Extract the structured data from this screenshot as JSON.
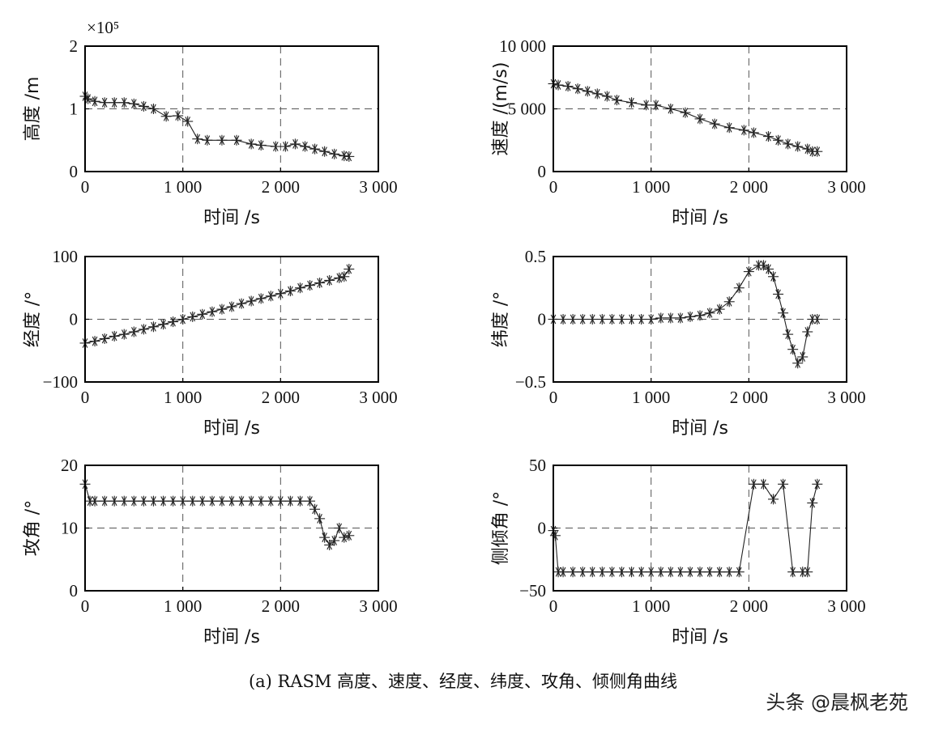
{
  "caption": "(a) RASM 高度、速度、经度、纬度、攻角、倾侧角曲线",
  "watermark": "头条 @晨枫老苑",
  "chart_data": [
    {
      "type": "line",
      "title": "",
      "xlabel": "时间 /s",
      "ylabel": "高度 /m",
      "xlim": [
        0,
        3000
      ],
      "ylim": [
        0,
        2
      ],
      "scale_note": "×10⁵",
      "xticks": [
        0,
        1000,
        2000,
        3000
      ],
      "xtick_labels": [
        "0",
        "1 000",
        "2 000",
        "3 000"
      ],
      "yticks": [
        0,
        1,
        2
      ],
      "ytick_labels": [
        "0",
        "1",
        "2"
      ],
      "grid": "dashed",
      "series": [
        {
          "x": [
            0,
            30,
            100,
            200,
            300,
            400,
            500,
            600,
            700,
            830,
            950,
            1050,
            1150,
            1250,
            1400,
            1550,
            1700,
            1800,
            1950,
            2050,
            2150,
            2250,
            2350,
            2450,
            2550,
            2650,
            2700
          ],
          "y": [
            1.2,
            1.16,
            1.12,
            1.1,
            1.1,
            1.1,
            1.08,
            1.04,
            1.0,
            0.88,
            0.89,
            0.8,
            0.52,
            0.5,
            0.5,
            0.5,
            0.44,
            0.42,
            0.4,
            0.4,
            0.44,
            0.4,
            0.36,
            0.32,
            0.28,
            0.25,
            0.24
          ]
        }
      ]
    },
    {
      "type": "line",
      "title": "",
      "xlabel": "时间 /s",
      "ylabel": "速度 /(m/s)",
      "xlim": [
        0,
        3000
      ],
      "ylim": [
        0,
        10000
      ],
      "xticks": [
        0,
        1000,
        2000,
        3000
      ],
      "xtick_labels": [
        "0",
        "1 000",
        "2 000",
        "3 000"
      ],
      "yticks": [
        0,
        5000,
        10000
      ],
      "ytick_labels": [
        "0",
        "5 000",
        "10 000"
      ],
      "grid": "dashed",
      "series": [
        {
          "x": [
            0,
            50,
            150,
            250,
            350,
            450,
            550,
            650,
            800,
            950,
            1050,
            1200,
            1350,
            1500,
            1650,
            1800,
            1950,
            2050,
            2200,
            2300,
            2400,
            2500,
            2600,
            2650,
            2700
          ],
          "y": [
            7000,
            6900,
            6800,
            6600,
            6400,
            6200,
            6000,
            5700,
            5500,
            5300,
            5300,
            5000,
            4700,
            4200,
            3800,
            3500,
            3300,
            3100,
            2800,
            2500,
            2200,
            2000,
            1800,
            1600,
            1600
          ]
        }
      ]
    },
    {
      "type": "line",
      "title": "",
      "xlabel": "时间 /s",
      "ylabel": "经度 /°",
      "xlim": [
        0,
        3000
      ],
      "ylim": [
        -100,
        100
      ],
      "xticks": [
        0,
        1000,
        2000,
        3000
      ],
      "xtick_labels": [
        "0",
        "1 000",
        "2 000",
        "3 000"
      ],
      "yticks": [
        -100,
        0,
        100
      ],
      "ytick_labels": [
        "−100",
        "0",
        "100"
      ],
      "grid": "dashed",
      "series": [
        {
          "x": [
            0,
            100,
            200,
            300,
            400,
            500,
            600,
            700,
            800,
            900,
            1000,
            1100,
            1200,
            1300,
            1400,
            1500,
            1600,
            1700,
            1800,
            1900,
            2000,
            2100,
            2200,
            2300,
            2400,
            2500,
            2600,
            2650,
            2700
          ],
          "y": [
            -38,
            -35,
            -31,
            -27,
            -24,
            -20,
            -16,
            -12,
            -8,
            -4,
            0,
            4,
            8,
            12,
            16,
            20,
            25,
            29,
            33,
            37,
            41,
            45,
            50,
            54,
            58,
            62,
            66,
            68,
            80
          ]
        }
      ]
    },
    {
      "type": "line",
      "title": "",
      "xlabel": "时间 /s",
      "ylabel": "纬度 /°",
      "xlim": [
        0,
        3000
      ],
      "ylim": [
        -0.5,
        0.5
      ],
      "xticks": [
        0,
        1000,
        2000,
        3000
      ],
      "xtick_labels": [
        "0",
        "1 000",
        "2 000",
        "3 000"
      ],
      "yticks": [
        -0.5,
        0,
        0.5
      ],
      "ytick_labels": [
        "−0.5",
        "0",
        "0.5"
      ],
      "grid": "dashed",
      "series": [
        {
          "x": [
            0,
            100,
            200,
            300,
            400,
            500,
            600,
            700,
            800,
            900,
            1000,
            1100,
            1200,
            1300,
            1400,
            1500,
            1600,
            1700,
            1800,
            1900,
            2000,
            2100,
            2150,
            2200,
            2250,
            2300,
            2350,
            2400,
            2450,
            2500,
            2550,
            2600,
            2650,
            2700
          ],
          "y": [
            0,
            0,
            0,
            0,
            0,
            0,
            0,
            0,
            0,
            0,
            0,
            0.01,
            0.01,
            0.01,
            0.02,
            0.03,
            0.05,
            0.08,
            0.14,
            0.25,
            0.38,
            0.43,
            0.43,
            0.4,
            0.34,
            0.2,
            0.05,
            -0.12,
            -0.24,
            -0.35,
            -0.3,
            -0.1,
            0.0,
            0.0
          ]
        }
      ]
    },
    {
      "type": "line",
      "title": "",
      "xlabel": "时间 /s",
      "ylabel": "攻角 /°",
      "xlim": [
        0,
        3000
      ],
      "ylim": [
        0,
        20
      ],
      "xticks": [
        0,
        1000,
        2000,
        3000
      ],
      "xtick_labels": [
        "0",
        "1 000",
        "2 000",
        "3 000"
      ],
      "yticks": [
        0,
        10,
        20
      ],
      "ytick_labels": [
        "0",
        "10",
        "20"
      ],
      "grid": "dashed",
      "series": [
        {
          "x": [
            0,
            50,
            100,
            200,
            300,
            400,
            500,
            600,
            700,
            800,
            900,
            1000,
            1100,
            1200,
            1300,
            1400,
            1500,
            1600,
            1700,
            1800,
            1900,
            2000,
            2100,
            2200,
            2300,
            2350,
            2400,
            2450,
            2500,
            2550,
            2600,
            2650,
            2700
          ],
          "y": [
            17,
            14.3,
            14.3,
            14.3,
            14.3,
            14.3,
            14.3,
            14.3,
            14.3,
            14.3,
            14.3,
            14.3,
            14.3,
            14.3,
            14.3,
            14.3,
            14.3,
            14.3,
            14.3,
            14.3,
            14.3,
            14.3,
            14.3,
            14.3,
            14.3,
            13,
            11.5,
            8.5,
            7.3,
            8,
            10,
            8.5,
            8.8
          ]
        }
      ]
    },
    {
      "type": "line",
      "title": "",
      "xlabel": "时间 /s",
      "ylabel": "侧倾角 /°",
      "xlim": [
        0,
        3000
      ],
      "ylim": [
        -50,
        50
      ],
      "xticks": [
        0,
        1000,
        2000,
        3000
      ],
      "xtick_labels": [
        "0",
        "1 000",
        "2 000",
        "3 000"
      ],
      "yticks": [
        -50,
        0,
        50
      ],
      "ytick_labels": [
        "−50",
        "0",
        "50"
      ],
      "grid": "dashed",
      "series": [
        {
          "x": [
            0,
            20,
            50,
            100,
            200,
            300,
            400,
            500,
            600,
            700,
            800,
            900,
            1000,
            1100,
            1200,
            1300,
            1400,
            1500,
            1600,
            1700,
            1800,
            1900,
            2050,
            2150,
            2250,
            2350,
            2450,
            2550,
            2600,
            2650,
            2700
          ],
          "y": [
            -2,
            -6,
            -35,
            -35,
            -35,
            -35,
            -35,
            -35,
            -35,
            -35,
            -35,
            -35,
            -35,
            -35,
            -35,
            -35,
            -35,
            -35,
            -35,
            -35,
            -35,
            -35,
            35,
            35,
            23,
            35,
            -35,
            -35,
            -35,
            20,
            35
          ]
        }
      ]
    }
  ]
}
